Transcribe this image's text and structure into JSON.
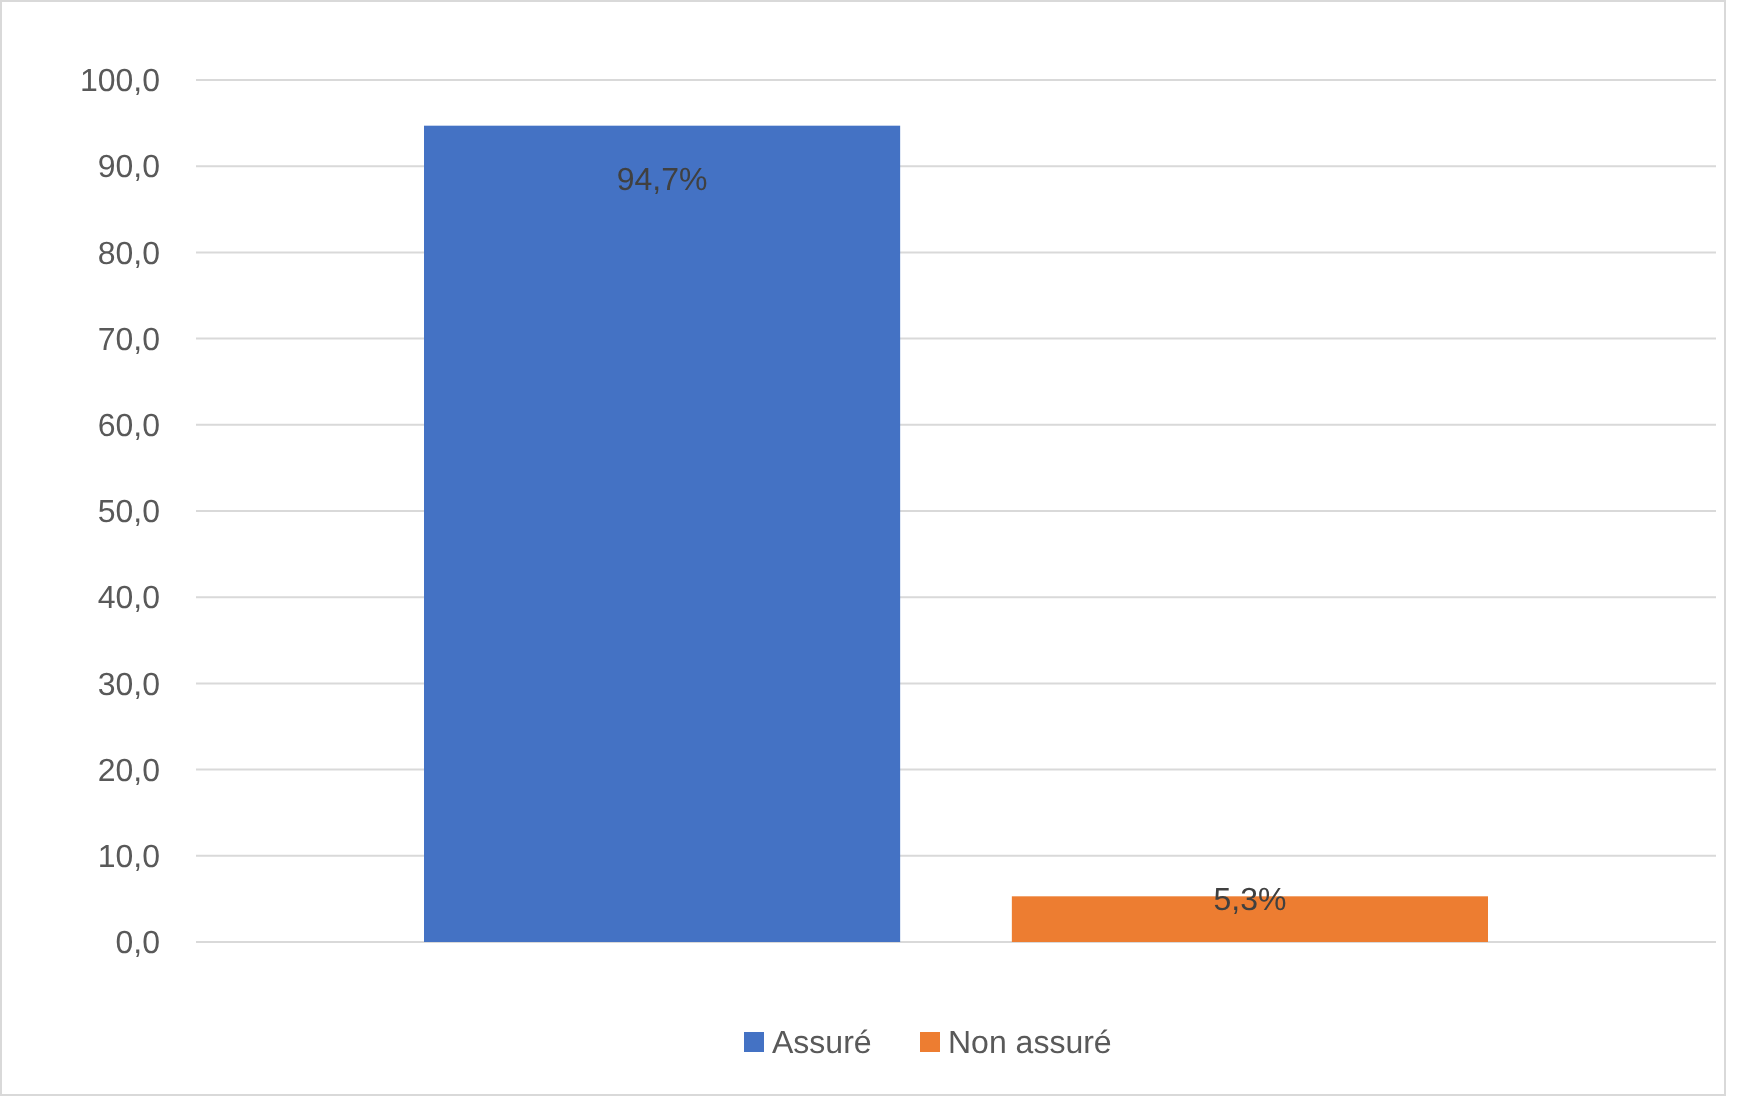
{
  "chart_data": {
    "type": "bar",
    "categories": [
      null
    ],
    "series": [
      {
        "name": "Assuré",
        "color": "#4472c4",
        "values": [
          94.7
        ],
        "value_labels": [
          "94,7%"
        ]
      },
      {
        "name": "Non assuré",
        "color": "#ed7d31",
        "values": [
          5.3
        ],
        "value_labels": [
          "5,3%"
        ]
      }
    ],
    "ylim": [
      0,
      100
    ],
    "yticks": [
      {
        "value": 0,
        "label": "0,0"
      },
      {
        "value": 10,
        "label": "10,0"
      },
      {
        "value": 20,
        "label": "20,0"
      },
      {
        "value": 30,
        "label": "30,0"
      },
      {
        "value": 40,
        "label": "40,0"
      },
      {
        "value": 50,
        "label": "50,0"
      },
      {
        "value": 60,
        "label": "60,0"
      },
      {
        "value": 70,
        "label": "70,0"
      },
      {
        "value": 80,
        "label": "80,0"
      },
      {
        "value": 90,
        "label": "90,0"
      },
      {
        "value": 100,
        "label": "100,0"
      }
    ],
    "grid": "y",
    "legend": "bottom"
  }
}
